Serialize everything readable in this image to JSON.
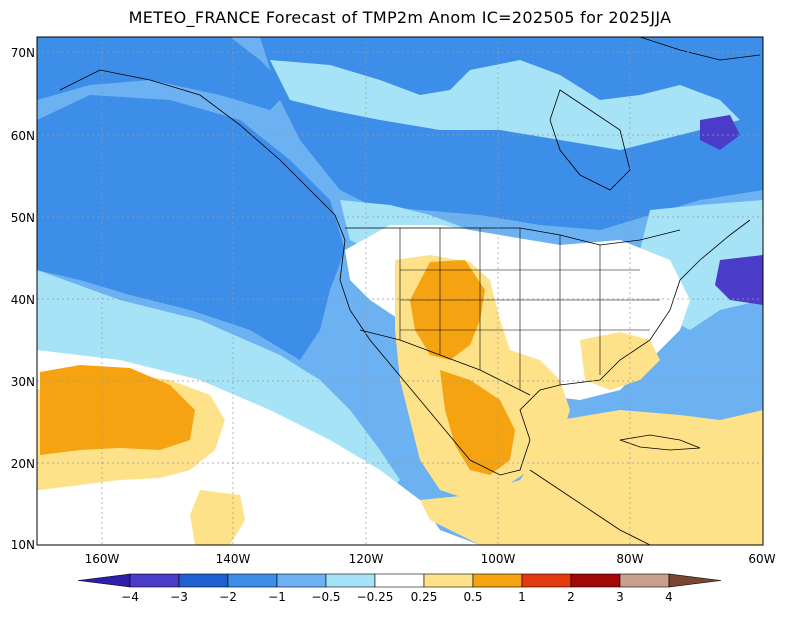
{
  "title": "METEO_FRANCE Forecast of TMP2m Anom IC=202505 for 2025JJA",
  "lat_labels": [
    "70N",
    "60N",
    "50N",
    "40N",
    "30N",
    "20N",
    "10N"
  ],
  "lon_labels": [
    "160W",
    "140W",
    "120W",
    "100W",
    "80W",
    "60W"
  ],
  "colorbar": {
    "labels": [
      "-4",
      "-3",
      "-2",
      "-1",
      "-0.5",
      "-0.25",
      "0.25",
      "0.5",
      "1",
      "2",
      "3",
      "4"
    ],
    "colors": [
      "#2d1fa8",
      "#4a3cc8",
      "#1f5fd1",
      "#3d8ee8",
      "#6cb1f2",
      "#a7e3f7",
      "#ffffff",
      "#fde28a",
      "#f6a312",
      "#e33a10",
      "#a30808",
      "#c9a08f",
      "#7a4632"
    ]
  },
  "fill_colors": {
    "ocean_base": "#6cb1f2",
    "strong_cold": "#3d8ee8",
    "mild_cold": "#a7e3f7",
    "neutral": "#ffffff",
    "mild_warm": "#fde28a",
    "warm": "#f6a312",
    "very_cold": "#4a3cc8"
  }
}
